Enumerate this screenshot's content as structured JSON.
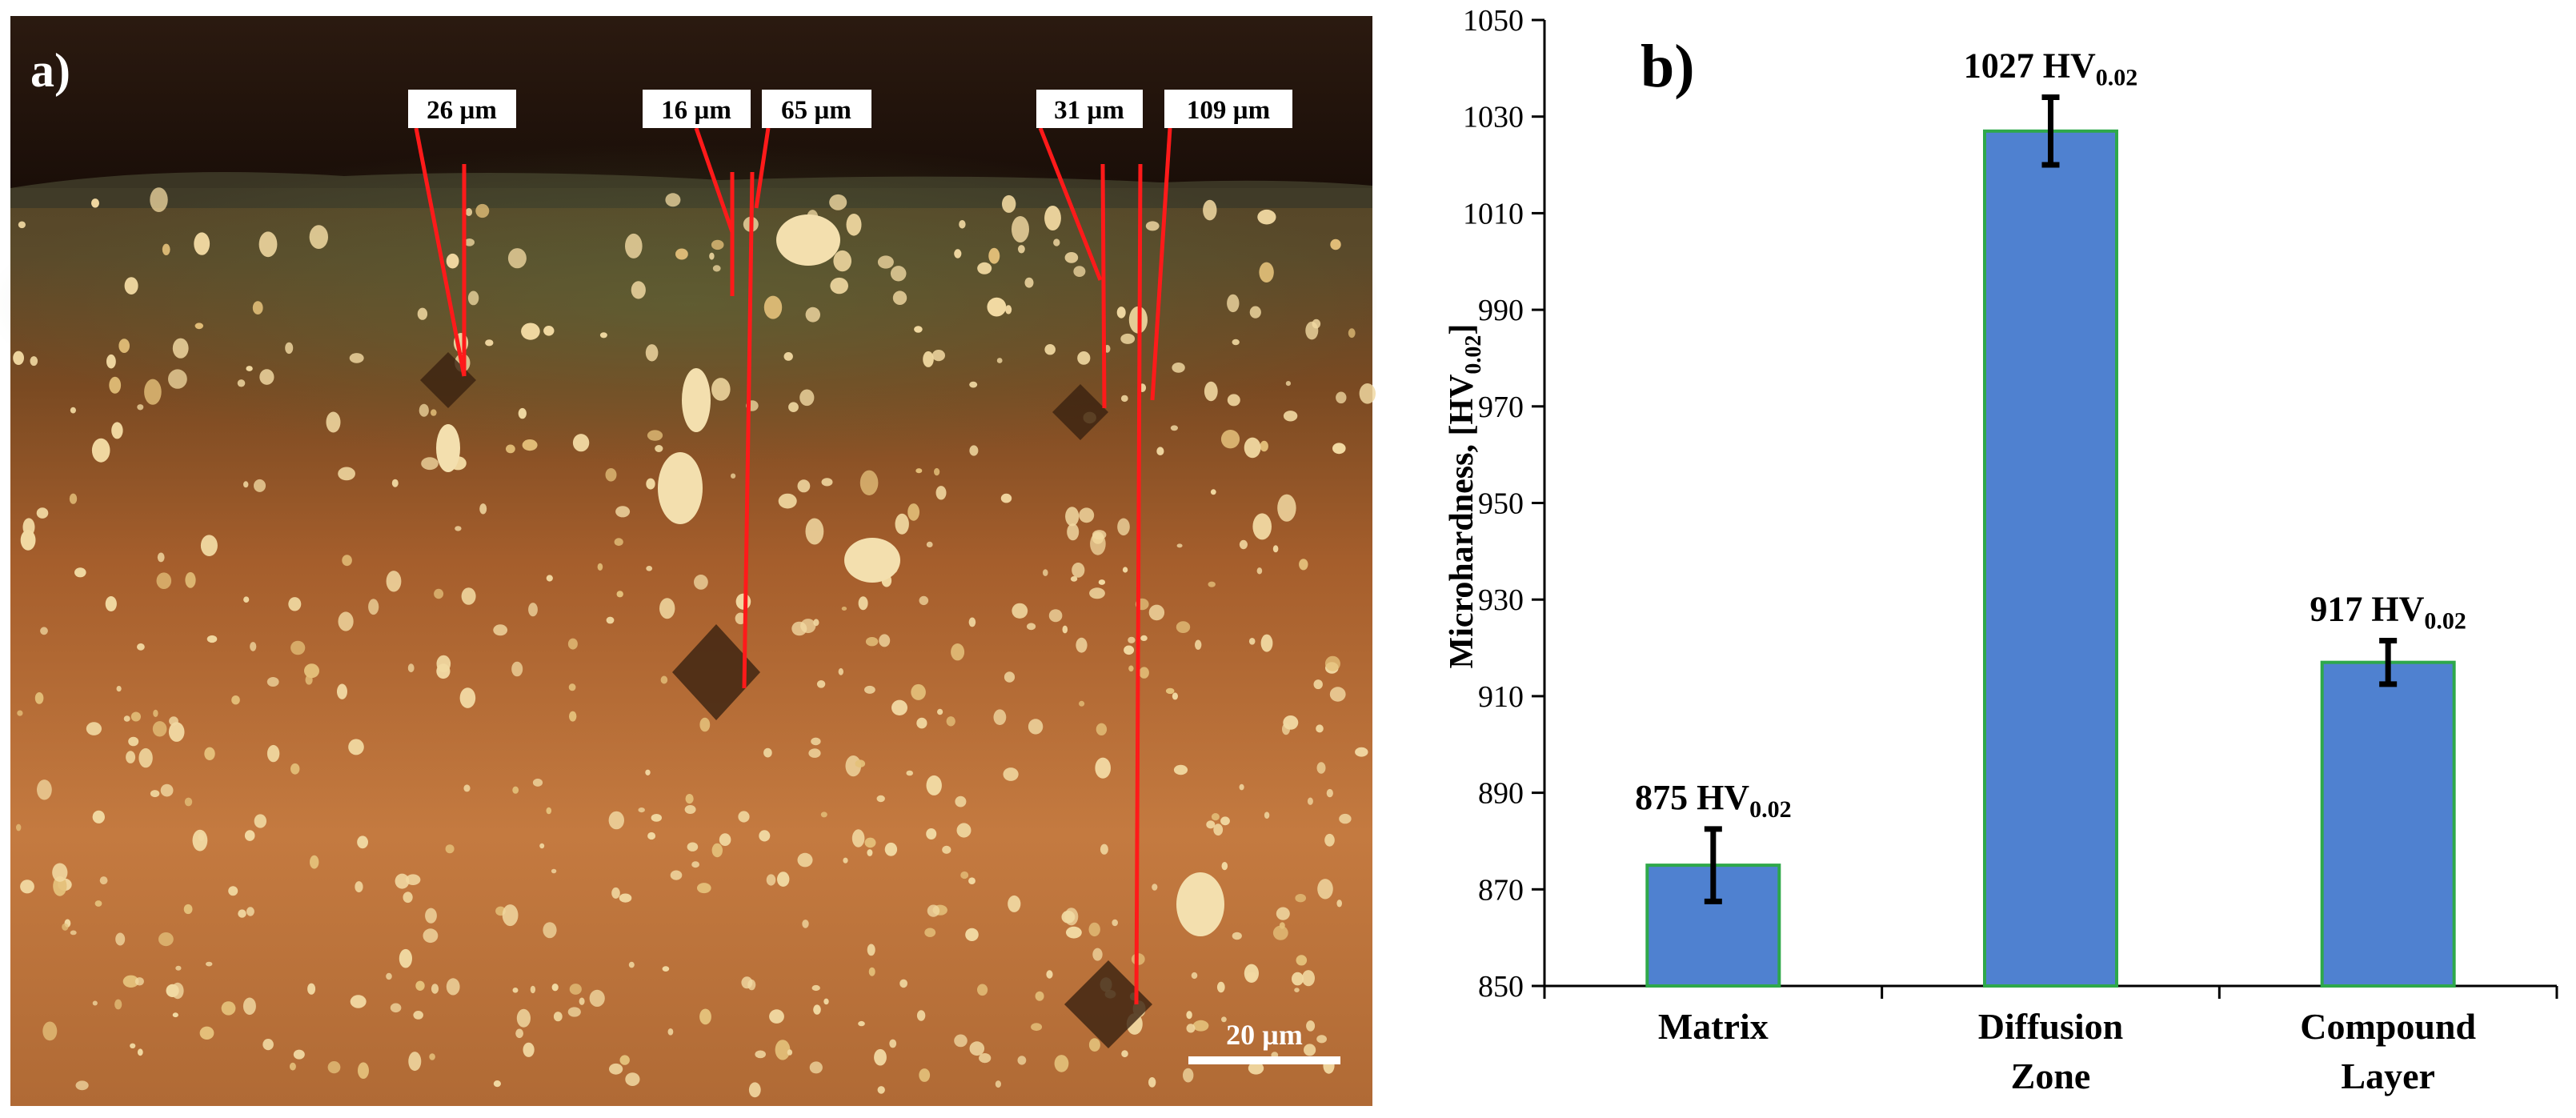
{
  "panel_a": {
    "label": "a)",
    "depth_labels": [
      "26 µm",
      "16 µm",
      "65 µm",
      "31 µm",
      "109 µm"
    ],
    "scale_bar": "20 µm"
  },
  "chart_data": {
    "type": "bar",
    "panel_label": "b)",
    "categories": [
      "Matrix",
      "Diffusion Zone",
      "Compound Layer"
    ],
    "category_lines": [
      [
        "Matrix"
      ],
      [
        "Diffusion",
        "Zone"
      ],
      [
        "Compound",
        "Layer"
      ]
    ],
    "values": [
      875,
      1027,
      917
    ],
    "errors": [
      7.5,
      7,
      4.5
    ],
    "data_labels": [
      {
        "main": "875 HV",
        "sub": "0.02"
      },
      {
        "main": "1027 HV",
        "sub": "0.02"
      },
      {
        "main": "917 HV",
        "sub": "0.02"
      }
    ],
    "ylabel": {
      "main": "Microhardness, [HV",
      "sub": "0.02",
      "end": "]"
    },
    "ylim": [
      850,
      1050
    ],
    "yticks": [
      850,
      870,
      890,
      910,
      930,
      950,
      970,
      990,
      1010,
      1030,
      1050
    ],
    "grid": false,
    "bar_color": "#4F81D0",
    "bar_edge_color": "#2EA84A"
  }
}
